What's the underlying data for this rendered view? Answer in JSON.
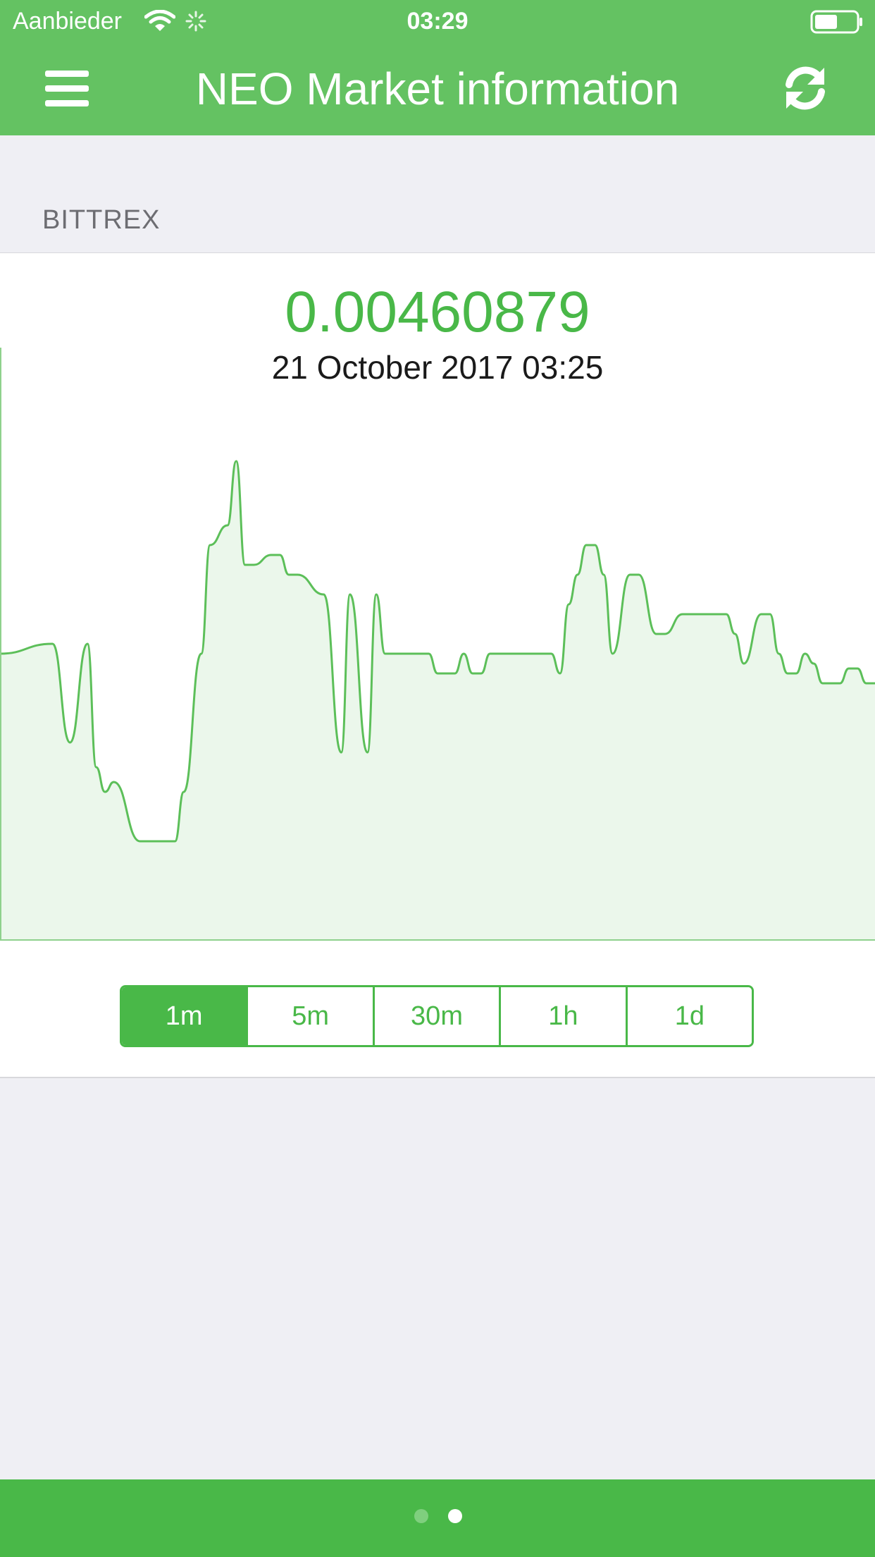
{
  "status_bar": {
    "carrier": "Aanbieder",
    "time": "03:29",
    "battery_level": 0.55
  },
  "header": {
    "title": "NEO Market information",
    "menu_icon": "menu-icon",
    "refresh_icon": "refresh-icon",
    "background_color": "#64c262"
  },
  "exchange": {
    "label": "BITTREX"
  },
  "market": {
    "price": "0.00460879",
    "timestamp": "21 October 2017 03:25"
  },
  "colors": {
    "accent": "#49b848",
    "line": "#5cbf59",
    "fill": "#ebf7eb"
  },
  "chart_data": {
    "type": "area",
    "x": [
      0,
      6,
      8,
      10,
      11,
      12,
      13,
      16,
      18,
      20,
      21,
      23,
      24,
      26,
      27,
      28,
      29,
      31,
      32,
      33,
      34,
      37,
      39,
      40,
      42,
      43,
      44,
      45,
      46,
      47,
      48,
      49,
      50,
      51,
      52,
      53,
      54,
      55,
      56,
      57,
      59,
      63,
      64,
      65,
      66,
      67,
      68,
      69,
      70,
      72,
      73,
      75,
      76,
      78,
      83,
      84,
      85,
      87,
      88,
      89,
      90,
      91,
      92,
      93,
      94,
      95,
      96,
      97,
      98,
      99,
      100
    ],
    "values": [
      0.58,
      0.6,
      0.4,
      0.6,
      0.35,
      0.3,
      0.32,
      0.2,
      0.2,
      0.2,
      0.3,
      0.58,
      0.8,
      0.84,
      0.97,
      0.76,
      0.76,
      0.78,
      0.78,
      0.74,
      0.74,
      0.7,
      0.38,
      0.7,
      0.38,
      0.7,
      0.58,
      0.58,
      0.58,
      0.58,
      0.58,
      0.58,
      0.54,
      0.54,
      0.54,
      0.58,
      0.54,
      0.54,
      0.58,
      0.58,
      0.58,
      0.58,
      0.54,
      0.68,
      0.74,
      0.8,
      0.8,
      0.74,
      0.58,
      0.74,
      0.74,
      0.62,
      0.62,
      0.66,
      0.66,
      0.62,
      0.56,
      0.66,
      0.66,
      0.58,
      0.54,
      0.54,
      0.58,
      0.56,
      0.52,
      0.52,
      0.52,
      0.55,
      0.55,
      0.52,
      0.52
    ],
    "ylim": [
      0,
      1.2
    ],
    "grid": false
  },
  "interval_selector": {
    "options": [
      "1m",
      "5m",
      "30m",
      "1h",
      "1d"
    ],
    "selected": "1m"
  },
  "pager": {
    "pages": 2,
    "current": 2
  }
}
